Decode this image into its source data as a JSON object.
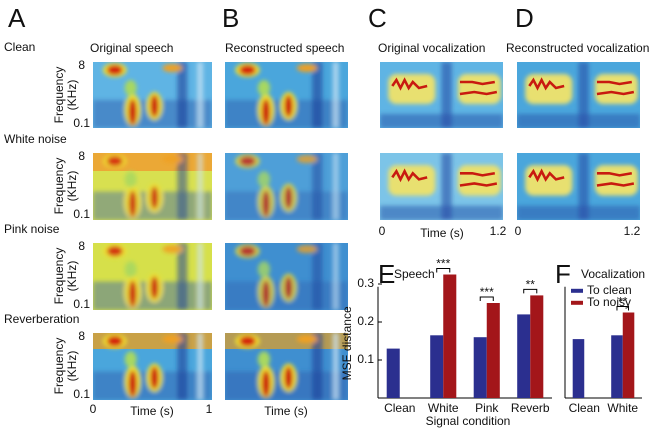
{
  "figure": {
    "panels": [
      "A",
      "B",
      "C",
      "D",
      "E",
      "F"
    ],
    "rows": [
      "Clean",
      "White noise",
      "Pink noise",
      "Reverberation"
    ],
    "columns": [
      "Original speech",
      "Reconstructed speech",
      "Original vocalization",
      "Reconstructed vocalization"
    ],
    "spectrogram_axis": {
      "ylabel": "Frequency",
      "yunit": "(KHz)",
      "ytop": "8",
      "ybottom": "0.1",
      "xlabel": "Time (s)",
      "speech_x": [
        "0",
        "1"
      ],
      "vocal_x": [
        "0",
        "1.2"
      ]
    }
  },
  "chart_data": [
    {
      "type": "bar",
      "title": "Speech",
      "ylabel": "MSE distance",
      "xlabel": "Signal condition",
      "categories": [
        "Clean",
        "White",
        "Pink",
        "Reverb"
      ],
      "series": [
        {
          "color": "#2b2f8f",
          "values": [
            0.13,
            0.165,
            0.16,
            0.22
          ]
        },
        {
          "color": "#a3161a",
          "values": [
            null,
            0.325,
            0.25,
            0.27
          ]
        }
      ],
      "ylim": [
        0,
        0.34
      ],
      "yticks": [
        0.1,
        0.2,
        0.3
      ],
      "annotations": [
        {
          "category": 1,
          "text": "***"
        },
        {
          "category": 2,
          "text": "***"
        },
        {
          "category": 3,
          "text": "**"
        }
      ]
    },
    {
      "type": "bar",
      "title": "Vocalization",
      "legend": "upper left",
      "categories": [
        "Clean",
        "White"
      ],
      "series": [
        {
          "name": "To clean",
          "color": "#2b2f8f",
          "values": [
            0.155,
            0.165
          ]
        },
        {
          "name": "To noisy",
          "color": "#a3161a",
          "values": [
            null,
            0.225
          ]
        }
      ],
      "ylim": [
        0,
        0.34
      ],
      "annotations": [
        {
          "category": 1,
          "text": "**"
        }
      ]
    }
  ]
}
